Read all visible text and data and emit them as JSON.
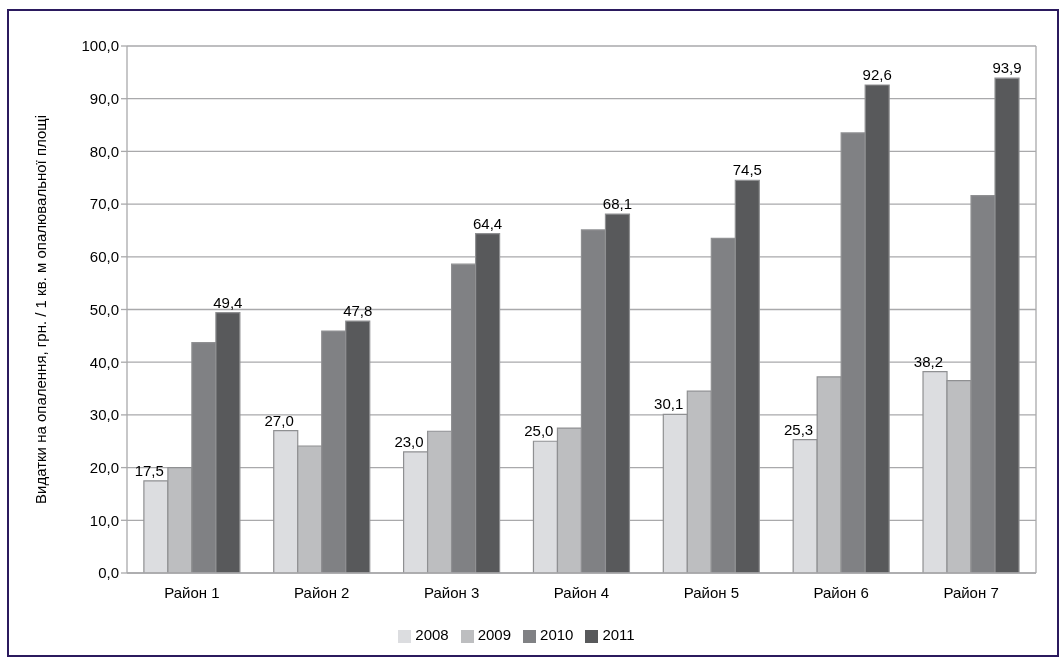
{
  "chart_data": {
    "type": "bar",
    "ylabel": "Видатки на опалення, грн. / 1 кв. м опалювальної площі",
    "categories": [
      "Район 1",
      "Район 2",
      "Район 3",
      "Район 4",
      "Район 5",
      "Район 6",
      "Район 7"
    ],
    "series": [
      {
        "name": "2008",
        "color": "#dcdde0",
        "values": [
          17.5,
          27.0,
          23.0,
          25.0,
          30.1,
          25.3,
          38.2
        ],
        "value_labels": [
          "17,5",
          "27,0",
          "23,0",
          "25,0",
          "30,1",
          "25,3",
          "38,2"
        ]
      },
      {
        "name": "2009",
        "color": "#bdbec0",
        "values": [
          20.0,
          24.1,
          26.9,
          27.5,
          34.5,
          37.2,
          36.5
        ]
      },
      {
        "name": "2010",
        "color": "#808184",
        "values": [
          43.7,
          45.9,
          58.6,
          65.1,
          63.5,
          83.5,
          71.6
        ]
      },
      {
        "name": "2011",
        "color": "#58595b",
        "values": [
          49.4,
          47.8,
          64.4,
          68.1,
          74.5,
          92.6,
          93.9
        ],
        "value_labels": [
          "49,4",
          "47,8",
          "64,4",
          "68,1",
          "74,5",
          "92,6",
          "93,9"
        ]
      }
    ],
    "ylim": [
      0,
      100
    ],
    "yticks": [
      {
        "value": 0,
        "label": "0,0"
      },
      {
        "value": 10,
        "label": "10,0"
      },
      {
        "value": 20,
        "label": "20,0"
      },
      {
        "value": 30,
        "label": "30,0"
      },
      {
        "value": 40,
        "label": "40,0"
      },
      {
        "value": 50,
        "label": "50,0"
      },
      {
        "value": 60,
        "label": "60,0"
      },
      {
        "value": 70,
        "label": "70,0"
      },
      {
        "value": 80,
        "label": "80,0"
      },
      {
        "value": 90,
        "label": "90,0"
      },
      {
        "value": 100,
        "label": "100,0"
      }
    ],
    "grid": "y",
    "legend": "bottom"
  }
}
